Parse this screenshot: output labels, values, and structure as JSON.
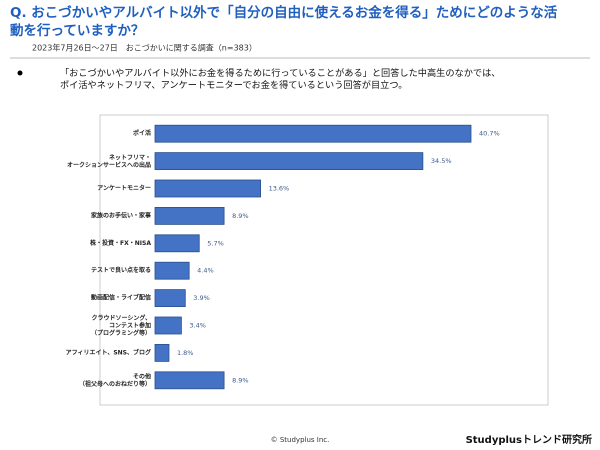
{
  "header": {
    "title": "Q. おこづかいやアルバイト以外で「自分の自由に使えるお金を得る」ためにどのような活\n動を行っていますか？",
    "subtitle": "2023年7月26日〜27日　おこづかいに関する調査（n=383）"
  },
  "note": "「おこづかいやアルバイト以外にお金を得るために行っていることがある」と回答した中高生のなかでは、\nポイ活やネットフリマ、アンケートモニターでお金を得ているという回答が目立つ。",
  "chart_data": {
    "type": "bar",
    "orientation": "horizontal",
    "categories": [
      "ポイ活",
      "ネットフリマ・\nオークションサービスへの出品",
      "アンケートモニター",
      "家族のお手伝い・家事",
      "株・投資・FX・NISA",
      "テストで良い点を取る",
      "動画配信・ライブ配信",
      "クラウドソーシング、\nコンテスト参加\n（プログラミング等）",
      "アフィリエイト、SNS、ブログ",
      "その他\n（祖父母へのおねだり等）"
    ],
    "values": [
      40.7,
      34.5,
      13.6,
      8.9,
      5.7,
      4.4,
      3.9,
      3.4,
      1.8,
      8.9
    ],
    "value_labels": [
      "40.7%",
      "34.5%",
      "13.6%",
      "8.9%",
      "5.7%",
      "4.4%",
      "3.9%",
      "3.4%",
      "1.8%",
      "8.9%"
    ],
    "color": "#4472c4"
  },
  "footer": {
    "copyright": "© Studyplus Inc.",
    "brand": "Studyplusトレンド研究所"
  }
}
